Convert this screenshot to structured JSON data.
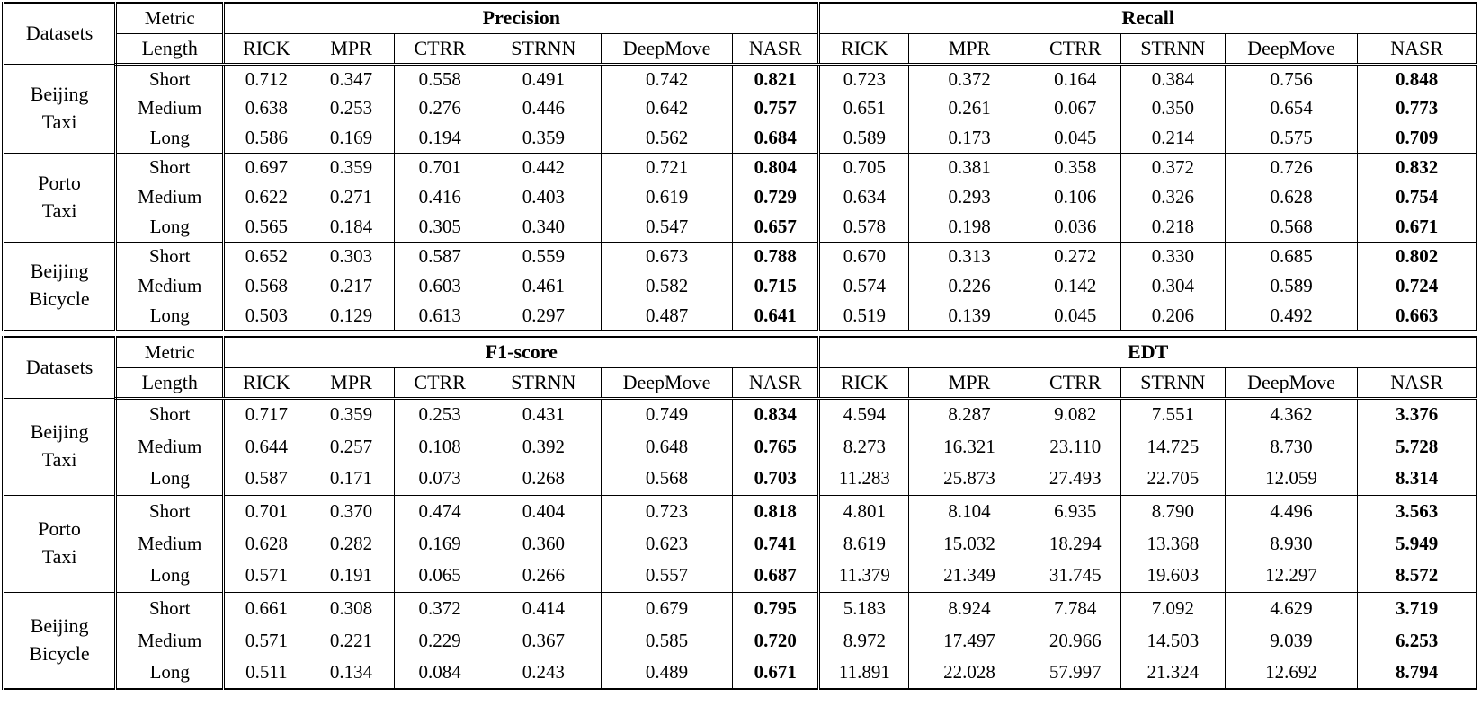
{
  "page": {
    "background_color": "#ffffff",
    "text_color": "#000000",
    "border_color": "#000000"
  },
  "tables": [
    {
      "corner_label": "Datasets",
      "metric_label": "Metric",
      "length_label": "Length",
      "metric_groups": [
        {
          "name": "Precision",
          "methods": [
            "RICK",
            "MPR",
            "CTRR",
            "STRNN",
            "DeepMove",
            "NASR"
          ],
          "best_method": "NASR"
        },
        {
          "name": "Recall",
          "methods": [
            "RICK",
            "MPR",
            "CTRR",
            "STRNN",
            "DeepMove",
            "NASR"
          ],
          "best_method": "NASR"
        }
      ],
      "row_groups": [
        {
          "dataset": "Beijing\nTaxi",
          "rows": [
            {
              "length": "Short",
              "values": [
                [
                  "0.712",
                  "0.347",
                  "0.558",
                  "0.491",
                  "0.742",
                  "0.821"
                ],
                [
                  "0.723",
                  "0.372",
                  "0.164",
                  "0.384",
                  "0.756",
                  "0.848"
                ]
              ]
            },
            {
              "length": "Medium",
              "values": [
                [
                  "0.638",
                  "0.253",
                  "0.276",
                  "0.446",
                  "0.642",
                  "0.757"
                ],
                [
                  "0.651",
                  "0.261",
                  "0.067",
                  "0.350",
                  "0.654",
                  "0.773"
                ]
              ]
            },
            {
              "length": "Long",
              "values": [
                [
                  "0.586",
                  "0.169",
                  "0.194",
                  "0.359",
                  "0.562",
                  "0.684"
                ],
                [
                  "0.589",
                  "0.173",
                  "0.045",
                  "0.214",
                  "0.575",
                  "0.709"
                ]
              ]
            }
          ]
        },
        {
          "dataset": "Porto\nTaxi",
          "rows": [
            {
              "length": "Short",
              "values": [
                [
                  "0.697",
                  "0.359",
                  "0.701",
                  "0.442",
                  "0.721",
                  "0.804"
                ],
                [
                  "0.705",
                  "0.381",
                  "0.358",
                  "0.372",
                  "0.726",
                  "0.832"
                ]
              ]
            },
            {
              "length": "Medium",
              "values": [
                [
                  "0.622",
                  "0.271",
                  "0.416",
                  "0.403",
                  "0.619",
                  "0.729"
                ],
                [
                  "0.634",
                  "0.293",
                  "0.106",
                  "0.326",
                  "0.628",
                  "0.754"
                ]
              ]
            },
            {
              "length": "Long",
              "values": [
                [
                  "0.565",
                  "0.184",
                  "0.305",
                  "0.340",
                  "0.547",
                  "0.657"
                ],
                [
                  "0.578",
                  "0.198",
                  "0.036",
                  "0.218",
                  "0.568",
                  "0.671"
                ]
              ]
            }
          ]
        },
        {
          "dataset": "Beijing\nBicycle",
          "rows": [
            {
              "length": "Short",
              "values": [
                [
                  "0.652",
                  "0.303",
                  "0.587",
                  "0.559",
                  "0.673",
                  "0.788"
                ],
                [
                  "0.670",
                  "0.313",
                  "0.272",
                  "0.330",
                  "0.685",
                  "0.802"
                ]
              ]
            },
            {
              "length": "Medium",
              "values": [
                [
                  "0.568",
                  "0.217",
                  "0.603",
                  "0.461",
                  "0.582",
                  "0.715"
                ],
                [
                  "0.574",
                  "0.226",
                  "0.142",
                  "0.304",
                  "0.589",
                  "0.724"
                ]
              ]
            },
            {
              "length": "Long",
              "values": [
                [
                  "0.503",
                  "0.129",
                  "0.613",
                  "0.297",
                  "0.487",
                  "0.641"
                ],
                [
                  "0.519",
                  "0.139",
                  "0.045",
                  "0.206",
                  "0.492",
                  "0.663"
                ]
              ]
            }
          ]
        }
      ]
    },
    {
      "corner_label": "Datasets",
      "metric_label": "Metric",
      "length_label": "Length",
      "metric_groups": [
        {
          "name": "F1-score",
          "methods": [
            "RICK",
            "MPR",
            "CTRR",
            "STRNN",
            "DeepMove",
            "NASR"
          ],
          "best_method": "NASR"
        },
        {
          "name": "EDT",
          "methods": [
            "RICK",
            "MPR",
            "CTRR",
            "STRNN",
            "DeepMove",
            "NASR"
          ],
          "best_method": "NASR"
        }
      ],
      "row_groups": [
        {
          "dataset": "Beijing\nTaxi",
          "rows": [
            {
              "length": "Short",
              "values": [
                [
                  "0.717",
                  "0.359",
                  "0.253",
                  "0.431",
                  "0.749",
                  "0.834"
                ],
                [
                  "4.594",
                  "8.287",
                  "9.082",
                  "7.551",
                  "4.362",
                  "3.376"
                ]
              ]
            },
            {
              "length": "Medium",
              "values": [
                [
                  "0.644",
                  "0.257",
                  "0.108",
                  "0.392",
                  "0.648",
                  "0.765"
                ],
                [
                  "8.273",
                  "16.321",
                  "23.110",
                  "14.725",
                  "8.730",
                  "5.728"
                ]
              ]
            },
            {
              "length": "Long",
              "values": [
                [
                  "0.587",
                  "0.171",
                  "0.073",
                  "0.268",
                  "0.568",
                  "0.703"
                ],
                [
                  "11.283",
                  "25.873",
                  "27.493",
                  "22.705",
                  "12.059",
                  "8.314"
                ]
              ]
            }
          ]
        },
        {
          "dataset": "Porto\nTaxi",
          "rows": [
            {
              "length": "Short",
              "values": [
                [
                  "0.701",
                  "0.370",
                  "0.474",
                  "0.404",
                  "0.723",
                  "0.818"
                ],
                [
                  "4.801",
                  "8.104",
                  "6.935",
                  "8.790",
                  "4.496",
                  "3.563"
                ]
              ]
            },
            {
              "length": "Medium",
              "values": [
                [
                  "0.628",
                  "0.282",
                  "0.169",
                  "0.360",
                  "0.623",
                  "0.741"
                ],
                [
                  "8.619",
                  "15.032",
                  "18.294",
                  "13.368",
                  "8.930",
                  "5.949"
                ]
              ]
            },
            {
              "length": "Long",
              "values": [
                [
                  "0.571",
                  "0.191",
                  "0.065",
                  "0.266",
                  "0.557",
                  "0.687"
                ],
                [
                  "11.379",
                  "21.349",
                  "31.745",
                  "19.603",
                  "12.297",
                  "8.572"
                ]
              ]
            }
          ]
        },
        {
          "dataset": "Beijing\nBicycle",
          "rows": [
            {
              "length": "Short",
              "values": [
                [
                  "0.661",
                  "0.308",
                  "0.372",
                  "0.414",
                  "0.679",
                  "0.795"
                ],
                [
                  "5.183",
                  "8.924",
                  "7.784",
                  "7.092",
                  "4.629",
                  "3.719"
                ]
              ]
            },
            {
              "length": "Medium",
              "values": [
                [
                  "0.571",
                  "0.221",
                  "0.229",
                  "0.367",
                  "0.585",
                  "0.720"
                ],
                [
                  "8.972",
                  "17.497",
                  "20.966",
                  "14.503",
                  "9.039",
                  "6.253"
                ]
              ]
            },
            {
              "length": "Long",
              "values": [
                [
                  "0.511",
                  "0.134",
                  "0.084",
                  "0.243",
                  "0.489",
                  "0.671"
                ],
                [
                  "11.891",
                  "22.028",
                  "57.997",
                  "21.324",
                  "12.692",
                  "8.794"
                ]
              ]
            }
          ]
        }
      ]
    }
  ]
}
